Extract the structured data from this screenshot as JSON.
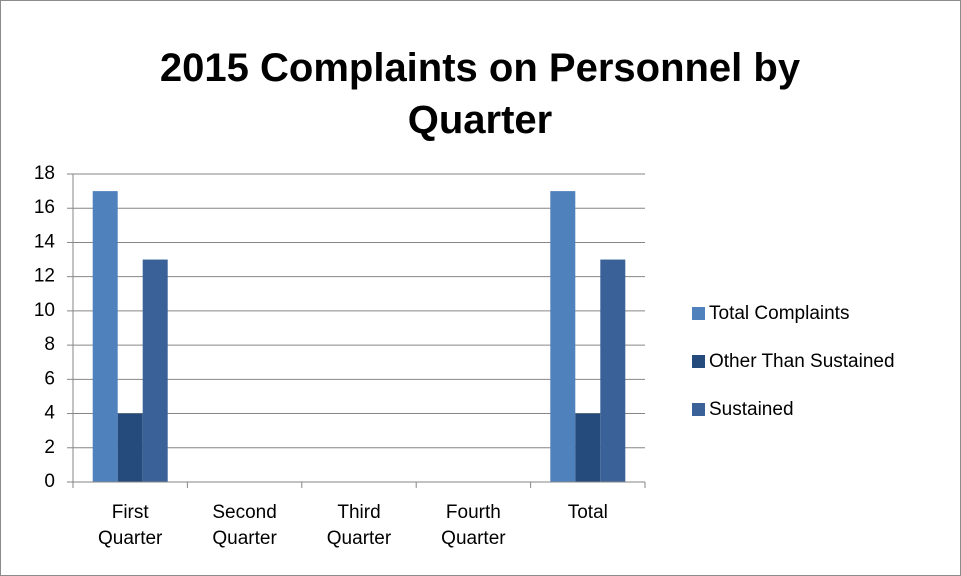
{
  "chart_data": {
    "type": "bar",
    "title": "2015 Complaints on Personnel by Quarter",
    "categories": [
      "First Quarter",
      "Second Quarter",
      "Third Quarter",
      "Fourth Quarter",
      "Total"
    ],
    "series": [
      {
        "name": "Total Complaints",
        "color": "#4f81bd",
        "values": [
          17,
          0,
          0,
          0,
          17
        ]
      },
      {
        "name": "Other Than Sustained",
        "color": "#254b7c",
        "values": [
          4,
          0,
          0,
          0,
          4
        ]
      },
      {
        "name": "Sustained",
        "color": "#3a6298",
        "values": [
          13,
          0,
          0,
          0,
          13
        ]
      }
    ],
    "ylim": [
      0,
      18
    ],
    "yticks": [
      0,
      2,
      4,
      6,
      8,
      10,
      12,
      14,
      16,
      18
    ],
    "grid": true,
    "legend": "right"
  }
}
